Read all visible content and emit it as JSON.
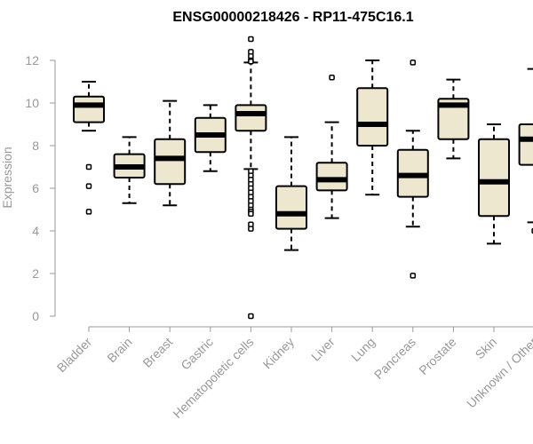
{
  "chart_data": {
    "type": "boxplot",
    "title": "ENSG00000218426 - RP11-475C16.1",
    "xlabel": "",
    "ylabel": "Expression",
    "ylim": [
      0,
      12.5
    ],
    "yticks": [
      0,
      2,
      4,
      6,
      8,
      10,
      12
    ],
    "colors": {
      "box_fill": "#ede7cf",
      "box_stroke": "#000000",
      "axis": "#999999"
    },
    "categories": [
      "Bladder",
      "Brain",
      "Breast",
      "Gastric",
      "Hematopoietic cells",
      "Kidney",
      "Liver",
      "Lung",
      "Pancreas",
      "Prostate",
      "Skin",
      "Unknown / Other"
    ],
    "boxes": [
      {
        "name": "Bladder",
        "whisker_low": 8.7,
        "q1": 9.1,
        "median": 9.9,
        "q3": 10.3,
        "whisker_high": 11.0,
        "outliers": [
          7.0,
          6.1,
          4.9
        ]
      },
      {
        "name": "Brain",
        "whisker_low": 5.3,
        "q1": 6.5,
        "median": 7.0,
        "q3": 7.6,
        "whisker_high": 8.4,
        "outliers": []
      },
      {
        "name": "Breast",
        "whisker_low": 5.2,
        "q1": 6.2,
        "median": 7.4,
        "q3": 8.3,
        "whisker_high": 10.1,
        "outliers": []
      },
      {
        "name": "Gastric",
        "whisker_low": 6.8,
        "q1": 7.7,
        "median": 8.5,
        "q3": 9.3,
        "whisker_high": 9.9,
        "outliers": []
      },
      {
        "name": "Hematopoietic cells",
        "whisker_low": 6.9,
        "q1": 8.7,
        "median": 9.5,
        "q3": 9.9,
        "whisker_high": 11.9,
        "outliers": [
          13.0,
          12.4,
          12.2,
          12.0,
          11.95,
          6.8,
          6.6,
          6.4,
          6.2,
          6.0,
          5.8,
          5.6,
          5.4,
          5.2,
          5.0,
          4.9,
          4.8,
          4.3,
          4.1,
          0.0
        ]
      },
      {
        "name": "Kidney",
        "whisker_low": 3.1,
        "q1": 4.1,
        "median": 4.8,
        "q3": 6.1,
        "whisker_high": 8.4,
        "outliers": []
      },
      {
        "name": "Liver",
        "whisker_low": 4.6,
        "q1": 5.9,
        "median": 6.4,
        "q3": 7.2,
        "whisker_high": 9.1,
        "outliers": [
          11.2
        ]
      },
      {
        "name": "Lung",
        "whisker_low": 5.7,
        "q1": 8.0,
        "median": 9.0,
        "q3": 10.7,
        "whisker_high": 12.0,
        "outliers": []
      },
      {
        "name": "Pancreas",
        "whisker_low": 4.2,
        "q1": 5.6,
        "median": 6.6,
        "q3": 7.8,
        "whisker_high": 8.7,
        "outliers": [
          11.9,
          1.9
        ]
      },
      {
        "name": "Prostate",
        "whisker_low": 7.4,
        "q1": 8.3,
        "median": 9.9,
        "q3": 10.2,
        "whisker_high": 11.1,
        "outliers": []
      },
      {
        "name": "Skin",
        "whisker_low": 3.4,
        "q1": 4.7,
        "median": 6.3,
        "q3": 8.3,
        "whisker_high": 9.0,
        "outliers": []
      },
      {
        "name": "Unknown / Other",
        "whisker_low": 4.4,
        "q1": 7.1,
        "median": 8.3,
        "q3": 9.0,
        "whisker_high": 11.6,
        "outliers": [
          4.0
        ]
      }
    ]
  }
}
